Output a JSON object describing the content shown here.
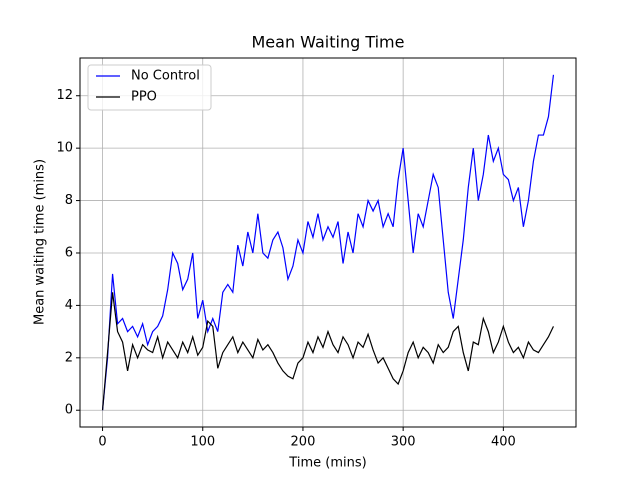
{
  "chart_data": {
    "type": "line",
    "title": "Mean Waiting Time",
    "x_label": "Time (mins)",
    "y_label": "Mean waiting time (mins)",
    "x": [
      0,
      5,
      10,
      15,
      20,
      25,
      30,
      35,
      40,
      45,
      50,
      55,
      60,
      65,
      70,
      75,
      80,
      85,
      90,
      95,
      100,
      105,
      110,
      115,
      120,
      125,
      130,
      135,
      140,
      145,
      150,
      155,
      160,
      165,
      170,
      175,
      180,
      185,
      190,
      195,
      200,
      205,
      210,
      215,
      220,
      225,
      230,
      235,
      240,
      245,
      250,
      255,
      260,
      265,
      270,
      275,
      280,
      285,
      290,
      295,
      300,
      305,
      310,
      315,
      320,
      325,
      330,
      335,
      340,
      345,
      350,
      355,
      360,
      365,
      370,
      375,
      380,
      385,
      390,
      395,
      400,
      405,
      410,
      415,
      420,
      425,
      430,
      435,
      440,
      445,
      450
    ],
    "series": [
      {
        "name": "No Control",
        "color": "#0000ff",
        "values": [
          0,
          2.0,
          5.2,
          3.3,
          3.5,
          3.0,
          3.2,
          2.8,
          3.3,
          2.5,
          3.0,
          3.2,
          3.6,
          4.6,
          6.0,
          5.6,
          4.6,
          5.0,
          6.0,
          3.5,
          4.2,
          3.0,
          3.5,
          3.0,
          4.5,
          4.8,
          4.5,
          6.3,
          5.5,
          6.8,
          6.0,
          7.5,
          6.0,
          5.8,
          6.5,
          6.8,
          6.2,
          5.0,
          5.5,
          6.5,
          6.0,
          7.2,
          6.6,
          7.5,
          6.5,
          7.0,
          6.6,
          7.2,
          5.6,
          6.8,
          6.0,
          7.5,
          7.0,
          8.0,
          7.6,
          8.0,
          7.0,
          7.5,
          7.0,
          8.8,
          10.0,
          8.0,
          6.0,
          7.5,
          7.0,
          8.0,
          9.0,
          8.5,
          6.5,
          4.5,
          3.5,
          5.0,
          6.5,
          8.5,
          10.0,
          8.0,
          9.0,
          10.5,
          9.5,
          10.0,
          9.0,
          8.8,
          8.0,
          8.5,
          7.0,
          8.0,
          9.5,
          10.5,
          10.5,
          11.2,
          12.8
        ]
      },
      {
        "name": "PPO",
        "color": "#000000",
        "values": [
          0,
          2.2,
          4.5,
          3.0,
          2.6,
          1.5,
          2.5,
          2.0,
          2.5,
          2.3,
          2.2,
          2.8,
          2.0,
          2.6,
          2.3,
          2.0,
          2.6,
          2.2,
          2.8,
          2.1,
          2.4,
          3.4,
          3.2,
          1.6,
          2.2,
          2.5,
          2.8,
          2.2,
          2.6,
          2.3,
          2.0,
          2.7,
          2.3,
          2.5,
          2.2,
          1.8,
          1.5,
          1.3,
          1.2,
          1.8,
          2.0,
          2.6,
          2.2,
          2.8,
          2.4,
          3.0,
          2.5,
          2.2,
          2.8,
          2.5,
          2.0,
          2.6,
          2.4,
          2.9,
          2.3,
          1.8,
          2.0,
          1.6,
          1.2,
          1.0,
          1.5,
          2.2,
          2.6,
          2.0,
          2.4,
          2.2,
          1.8,
          2.5,
          2.2,
          2.4,
          3.0,
          3.2,
          2.2,
          1.5,
          2.6,
          2.5,
          3.5,
          3.0,
          2.2,
          2.6,
          3.2,
          2.6,
          2.2,
          2.4,
          2.0,
          2.6,
          2.3,
          2.2,
          2.5,
          2.8,
          3.2
        ]
      }
    ],
    "xlim": [
      -22.5,
      472.5
    ],
    "ylim": [
      -0.64,
      13.44
    ],
    "xticks": [
      0,
      100,
      200,
      300,
      400
    ],
    "yticks": [
      0,
      2,
      4,
      6,
      8,
      10,
      12
    ],
    "grid": true,
    "legend": "upper left"
  }
}
